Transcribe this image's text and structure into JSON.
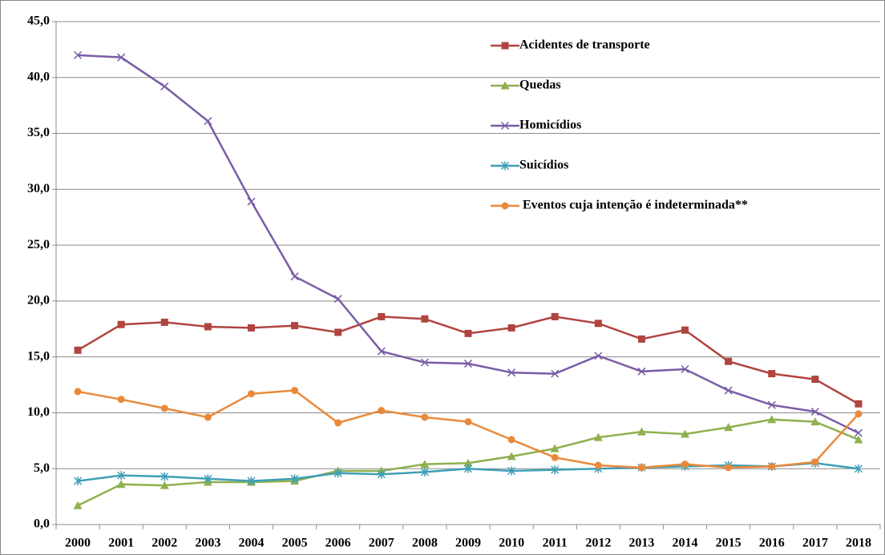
{
  "chart_data": {
    "type": "line",
    "categories": [
      "2000",
      "2001",
      "2002",
      "2003",
      "2004",
      "2005",
      "2006",
      "2007",
      "2008",
      "2009",
      "2010",
      "2011",
      "2012",
      "2013",
      "2014",
      "2015",
      "2016",
      "2017",
      "2018"
    ],
    "series": [
      {
        "name": "Acidentes de transporte",
        "color": "#b0443f",
        "marker": "square",
        "values": [
          15.6,
          17.9,
          18.1,
          17.7,
          17.6,
          17.8,
          17.2,
          18.6,
          18.4,
          17.1,
          17.6,
          18.6,
          18.0,
          16.6,
          17.4,
          14.6,
          13.5,
          13.0,
          10.8
        ]
      },
      {
        "name": "Quedas",
        "color": "#8fb04e",
        "marker": "triangle",
        "values": [
          1.7,
          3.6,
          3.5,
          3.8,
          3.8,
          3.9,
          4.8,
          4.8,
          5.4,
          5.5,
          6.1,
          6.8,
          7.8,
          8.3,
          8.1,
          8.7,
          9.4,
          9.2,
          7.6
        ]
      },
      {
        "name": "Homicídios",
        "color": "#7a5ca6",
        "marker": "x",
        "values": [
          42.0,
          41.8,
          39.2,
          36.1,
          28.9,
          22.2,
          20.2,
          15.5,
          14.5,
          14.4,
          13.6,
          13.5,
          15.1,
          13.7,
          13.9,
          12.0,
          10.7,
          10.1,
          8.2
        ]
      },
      {
        "name": "Suicídios",
        "color": "#3f9fb6",
        "marker": "asterisk",
        "values": [
          3.9,
          4.4,
          4.3,
          4.1,
          3.9,
          4.1,
          4.6,
          4.5,
          4.7,
          5.0,
          4.8,
          4.9,
          5.0,
          5.1,
          5.2,
          5.3,
          5.2,
          5.5,
          5.0
        ]
      },
      {
        "name": "Eventos cuja intenção é indeterminada**",
        "color": "#e98a3a",
        "marker": "circle",
        "values": [
          11.9,
          11.2,
          10.4,
          9.6,
          11.7,
          12.0,
          9.1,
          10.2,
          9.6,
          9.2,
          7.6,
          6.0,
          5.3,
          5.1,
          5.4,
          5.1,
          5.2,
          5.6,
          9.9
        ]
      }
    ],
    "ylim": [
      0,
      45
    ],
    "yticks": [
      {
        "value": 0,
        "label": "0,0"
      },
      {
        "value": 5,
        "label": "5,0"
      },
      {
        "value": 10,
        "label": "10,0"
      },
      {
        "value": 15,
        "label": "15,0"
      },
      {
        "value": 20,
        "label": "20,0"
      },
      {
        "value": 25,
        "label": "25,0"
      },
      {
        "value": 30,
        "label": "30,0"
      },
      {
        "value": 35,
        "label": "35,0"
      },
      {
        "value": 40,
        "label": "40,0"
      },
      {
        "value": 45,
        "label": "45,0"
      }
    ],
    "grid": true,
    "legend": "top-right"
  }
}
